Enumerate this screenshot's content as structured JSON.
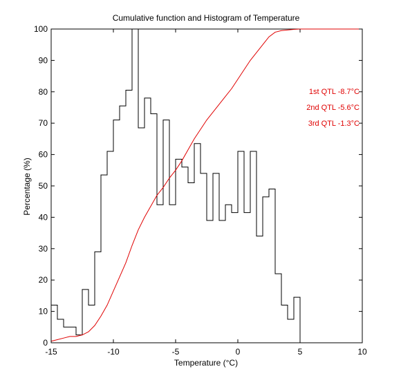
{
  "chart_data": {
    "type": "line",
    "title": "Cumulative function and Histogram of Temperature",
    "xlabel": "Temperature (°C)",
    "ylabel": "Percentage (%)",
    "xlim": [
      -15,
      10
    ],
    "ylim": [
      0,
      100
    ],
    "xticks": [
      -15,
      -10,
      -5,
      0,
      5,
      10
    ],
    "yticks": [
      0,
      10,
      20,
      30,
      40,
      50,
      60,
      70,
      80,
      90,
      100
    ],
    "xtick_labels": [
      "-15",
      "-10",
      "-5",
      "0",
      "5",
      "10"
    ],
    "ytick_labels": [
      "0",
      "10",
      "20",
      "30",
      "40",
      "50",
      "60",
      "70",
      "80",
      "90",
      "100"
    ],
    "grid": false,
    "colors": {
      "histogram": "#000000",
      "cumulative": "#e00000",
      "annotation": "#e00000"
    },
    "annotations": [
      "1st QTL -8.7°C",
      "2nd QTL -5.6°C",
      "3rd QTL -1.3°C"
    ],
    "series": [
      {
        "kind": "histogram-step",
        "bins_start": -15.0,
        "bin_width": 0.5,
        "values": [
          12.0,
          7.5,
          5.0,
          5.0,
          2.5,
          17.0,
          12.0,
          29.0,
          53.5,
          61.0,
          71.0,
          75.5,
          80.5,
          100.0,
          68.5,
          78.0,
          73.0,
          44.0,
          71.0,
          44.0,
          58.5,
          56.0,
          51.0,
          63.5,
          54.0,
          39.0,
          54.0,
          39.0,
          44.0,
          41.5,
          61.0,
          41.5,
          61.0,
          34.0,
          46.5,
          49.0,
          22.0,
          12.0,
          7.5,
          14.5,
          0.0
        ]
      },
      {
        "kind": "cumulative",
        "x": [
          -15.0,
          -14.5,
          -14.0,
          -13.5,
          -13.0,
          -12.5,
          -12.0,
          -11.5,
          -11.0,
          -10.5,
          -10.0,
          -9.5,
          -9.0,
          -8.5,
          -8.0,
          -7.5,
          -7.0,
          -6.5,
          -6.0,
          -5.5,
          -5.0,
          -4.5,
          -4.0,
          -3.5,
          -3.0,
          -2.5,
          -2.0,
          -1.5,
          -1.0,
          -0.5,
          0.0,
          0.5,
          1.0,
          1.5,
          2.0,
          2.5,
          3.0,
          3.5,
          4.0,
          4.5,
          5.0,
          10.0
        ],
        "y": [
          0.5,
          1.0,
          1.5,
          2.0,
          2.0,
          2.5,
          3.5,
          5.5,
          8.5,
          12.0,
          16.5,
          21.0,
          25.5,
          31.0,
          36.0,
          40.0,
          43.5,
          47.0,
          49.5,
          52.5,
          55.0,
          58.0,
          61.5,
          65.0,
          68.0,
          71.0,
          73.5,
          76.0,
          78.5,
          81.0,
          84.0,
          87.0,
          90.0,
          92.5,
          95.0,
          97.5,
          99.0,
          99.5,
          99.7,
          99.9,
          100.0,
          100.0
        ]
      }
    ]
  }
}
